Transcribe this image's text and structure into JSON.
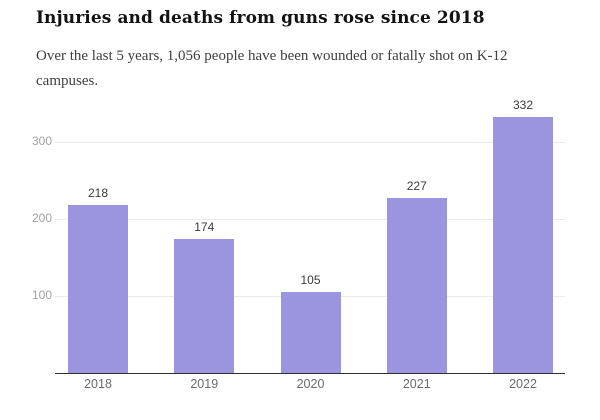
{
  "header": {
    "title": "Injuries and deaths from guns rose since 2018",
    "subtitle": "Over the last 5 years, 1,056 people have been wounded or fatally shot on K-12 campuses."
  },
  "chart_data": {
    "type": "bar",
    "title": "Injuries and deaths from guns rose since 2018",
    "subtitle": "Over the last 5 years, 1,056 people have been wounded or fatally shot on K-12 campuses.",
    "categories": [
      "2018",
      "2019",
      "2020",
      "2021",
      "2022"
    ],
    "values": [
      218,
      174,
      105,
      227,
      332
    ],
    "xlabel": "",
    "ylabel": "",
    "ylim": [
      0,
      350
    ],
    "yticks": [
      100,
      200,
      300
    ],
    "grid": true,
    "legend": "none",
    "bar_color": "#9A95DE",
    "grid_color": "#eaeaea",
    "axis_line_color": "#2f2f2f",
    "ytick_color": "#a1a1a1",
    "xtick_color": "#6b6b6b",
    "value_label_color": "#3a3a3a"
  }
}
